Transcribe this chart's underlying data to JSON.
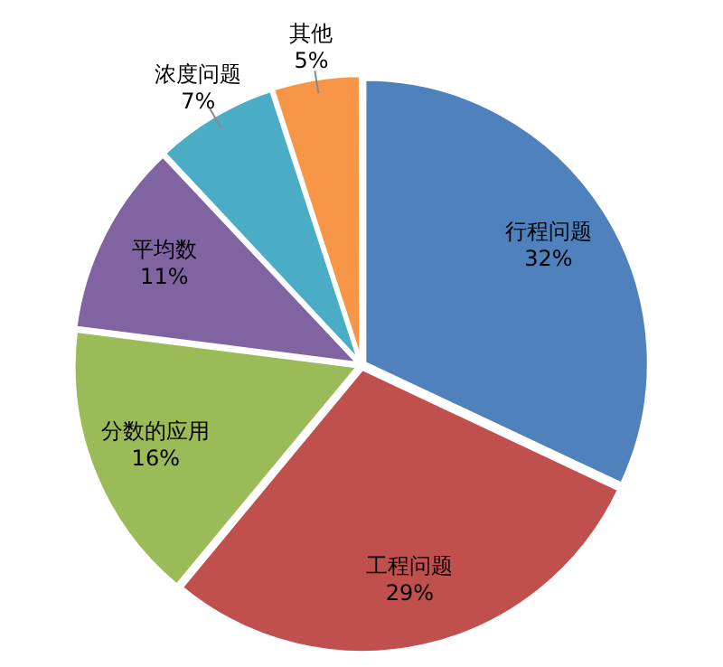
{
  "chart_data": {
    "type": "pie",
    "categories": [
      "行程问题",
      "工程问题",
      "分数的应用",
      "平均数",
      "浓度问题",
      "其他"
    ],
    "values": [
      32,
      29,
      16,
      11,
      7,
      5
    ],
    "value_labels": [
      "32%",
      "29%",
      "16%",
      "11%",
      "7%",
      "5%"
    ],
    "colors": [
      "#4f81bd",
      "#c0504d",
      "#9bbb59",
      "#8064a2",
      "#4bacc6",
      "#f79646"
    ],
    "legend": false
  }
}
